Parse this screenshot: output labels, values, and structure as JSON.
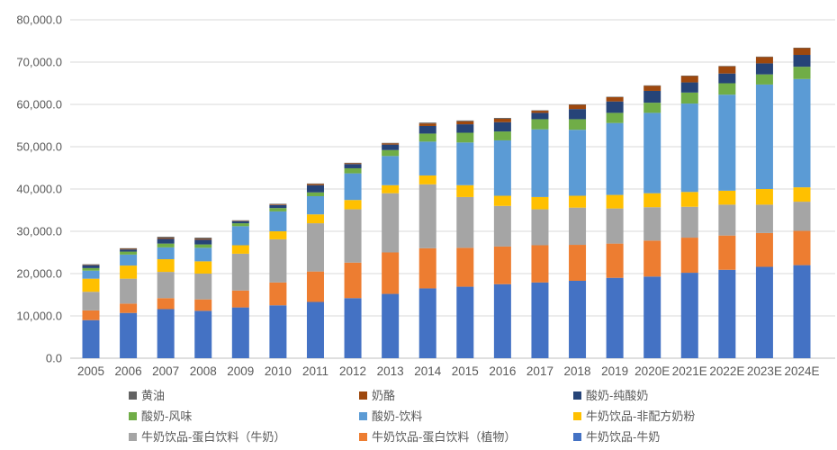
{
  "chart_data": {
    "type": "bar",
    "stacked": true,
    "title": "",
    "xlabel": "",
    "ylabel": "",
    "grid": true,
    "legend_position": "bottom",
    "ylim": [
      0,
      80000
    ],
    "ytick_step": 10000,
    "ytick_labels": [
      "0.0",
      "10,000.0",
      "20,000.0",
      "30,000.0",
      "40,000.0",
      "50,000.0",
      "60,000.0",
      "70,000.0",
      "80,000.0"
    ],
    "categories": [
      "2005",
      "2006",
      "2007",
      "2008",
      "2009",
      "2010",
      "2011",
      "2012",
      "2013",
      "2014",
      "2015",
      "2016",
      "2017",
      "2018",
      "2019",
      "2020E",
      "2021E",
      "2022E",
      "2023E",
      "2024E"
    ],
    "series": [
      {
        "name": "牛奶饮品-牛奶",
        "color": "#4472C4",
        "values": [
          9000,
          10700,
          11600,
          11200,
          12000,
          12500,
          13300,
          14200,
          15200,
          16500,
          16900,
          17500,
          17900,
          18300,
          19000,
          19300,
          20200,
          20900,
          21600,
          22000
        ]
      },
      {
        "name": "牛奶饮品-蛋白饮料（植物）",
        "color": "#ED7D31",
        "values": [
          2300,
          2200,
          2600,
          2700,
          4000,
          5400,
          7200,
          8400,
          9800,
          9500,
          9200,
          8900,
          8800,
          8500,
          8100,
          8500,
          8300,
          8100,
          8000,
          8100
        ]
      },
      {
        "name": "牛奶饮品-蛋白饮料（牛奶）",
        "color": "#A5A5A5",
        "values": [
          4400,
          5900,
          6200,
          6100,
          8700,
          10200,
          11400,
          12600,
          14000,
          15100,
          12000,
          9600,
          8500,
          8800,
          8300,
          7900,
          7300,
          7300,
          6700,
          6900
        ]
      },
      {
        "name": "牛奶饮品-非配方奶粉",
        "color": "#FFC000",
        "values": [
          3100,
          3100,
          3000,
          2900,
          2000,
          1900,
          2100,
          2200,
          1900,
          2100,
          2800,
          2400,
          2900,
          2800,
          3200,
          3300,
          3500,
          3300,
          3700,
          3400
        ]
      },
      {
        "name": "酸奶-饮料",
        "color": "#5B9BD5",
        "values": [
          1900,
          2600,
          2800,
          3200,
          4500,
          4700,
          4300,
          6300,
          6900,
          8000,
          10100,
          13100,
          16000,
          15600,
          17000,
          19000,
          20900,
          22700,
          24700,
          25600
        ]
      },
      {
        "name": "酸奶-风味",
        "color": "#70AD47",
        "values": [
          600,
          700,
          900,
          800,
          700,
          800,
          900,
          1200,
          1400,
          1900,
          2300,
          2100,
          2400,
          2500,
          2400,
          2400,
          2600,
          2700,
          2400,
          2900
        ]
      },
      {
        "name": "酸奶-纯酸奶",
        "color": "#264478",
        "values": [
          700,
          500,
          1100,
          1100,
          500,
          700,
          1700,
          1000,
          1300,
          1800,
          2000,
          2200,
          1500,
          2400,
          2700,
          2800,
          2400,
          2300,
          2600,
          2800
        ]
      },
      {
        "name": "奶酪",
        "color": "#9E480E",
        "values": [
          100,
          150,
          200,
          200,
          100,
          150,
          300,
          200,
          300,
          600,
          700,
          800,
          500,
          1000,
          1000,
          1200,
          1500,
          1700,
          1500,
          1600
        ]
      },
      {
        "name": "黄油",
        "color": "#636363",
        "values": [
          100,
          150,
          300,
          300,
          100,
          150,
          100,
          100,
          100,
          200,
          200,
          200,
          100,
          100,
          100,
          100,
          100,
          100,
          100,
          100
        ]
      }
    ],
    "legend_order": [
      "黄油",
      "奶酪",
      "酸奶-纯酸奶",
      "酸奶-风味",
      "酸奶-饮料",
      "牛奶饮品-非配方奶粉",
      "牛奶饮品-蛋白饮料（牛奶）",
      "牛奶饮品-蛋白饮料（植物）",
      "牛奶饮品-牛奶"
    ]
  },
  "style": {
    "gridline_color": "#D9D9D9",
    "axis_line_color": "#BFBFBF",
    "tick_label_color": "#595959",
    "background_color": "#FFFFFF"
  }
}
